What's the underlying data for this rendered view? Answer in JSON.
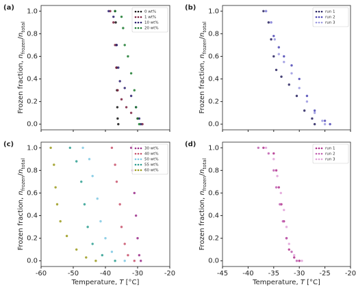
{
  "chart_data": [
    {
      "type": "scatter",
      "panel_label": "(a)",
      "ylabel": [
        "Frozen fraction, ",
        "n",
        "frozen",
        "/",
        "n",
        "total"
      ],
      "xlim": [
        -60,
        -20
      ],
      "ylim": [
        -0.05,
        1.05
      ],
      "xticks": [
        -60,
        -50,
        -40,
        -30,
        -20
      ],
      "yticks": [
        {
          "value": 0,
          "label": "0.0"
        },
        0.2,
        0.4,
        0.6,
        0.8,
        {
          "value": 1,
          "label": "1.0"
        }
      ],
      "legend": "upper right",
      "series": [
        {
          "name": "0 wt%",
          "color": "#111111",
          "x": [
            -37,
            -36.8,
            -36.6,
            -36.5,
            -36.4,
            -36.3,
            -36.2,
            -36
          ],
          "values": [
            1.0,
            0.9,
            0.7,
            0.5,
            0.3,
            0.15,
            0.05,
            0.0
          ]
        },
        {
          "name": "1 wt%",
          "color": "#7a1f3d",
          "x": [
            -38.5,
            -37.5,
            -37,
            -36.6,
            -36.2,
            -35,
            -33.5,
            -32,
            -30,
            -28.5
          ],
          "values": [
            1.0,
            0.9,
            0.7,
            0.5,
            0.3,
            0.22,
            0.15,
            0.1,
            0.05,
            0.0
          ]
        },
        {
          "name": "10 wt%",
          "color": "#2a1f6e",
          "x": [
            -39,
            -37.5,
            -36.5,
            -36,
            -35.5,
            -34,
            -32,
            -30.5,
            -29.5,
            -29
          ],
          "values": [
            1.0,
            0.95,
            0.7,
            0.5,
            0.38,
            0.32,
            0.25,
            0.15,
            0.05,
            0.0
          ]
        },
        {
          "name": "20 wt%",
          "color": "#1a7a2e",
          "x": [
            -37,
            -35,
            -34.5,
            -34,
            -33,
            -32,
            -31,
            -30.5,
            -30,
            -29.5
          ],
          "values": [
            1.0,
            0.95,
            0.85,
            0.7,
            0.6,
            0.45,
            0.3,
            0.15,
            0.05,
            0.0
          ]
        }
      ]
    },
    {
      "type": "scatter",
      "panel_label": "(b)",
      "ylabel": [
        "Frozen fraction, ",
        "n",
        "frozen",
        "/",
        "n",
        "total"
      ],
      "xlim": [
        -45,
        -20
      ],
      "ylim": [
        -0.05,
        1.05
      ],
      "xticks": [
        -45,
        -40,
        -35,
        -30,
        -25,
        -20
      ],
      "yticks": [
        {
          "value": 0,
          "label": "0.0"
        },
        0.2,
        0.4,
        0.6,
        0.8,
        {
          "value": 1,
          "label": "1.0"
        }
      ],
      "legend": "upper right",
      "series": [
        {
          "name": "run 1",
          "color": "#26205e",
          "x": [
            -37,
            -36,
            -35.5,
            -35,
            -34.5,
            -33.5,
            -32,
            -30.5,
            -29,
            -27.5,
            -27
          ],
          "values": [
            1.0,
            0.9,
            0.75,
            0.6,
            0.48,
            0.42,
            0.35,
            0.25,
            0.12,
            0.05,
            0.0
          ]
        },
        {
          "name": "run 2",
          "color": "#4b45b5",
          "x": [
            -36.5,
            -35.5,
            -35,
            -34,
            -33,
            -31.5,
            -30,
            -28.5,
            -27,
            -25,
            -24
          ],
          "values": [
            1.0,
            0.9,
            0.78,
            0.68,
            0.6,
            0.52,
            0.4,
            0.25,
            0.12,
            0.03,
            0.0
          ]
        },
        {
          "name": "run 3",
          "color": "#9a98e0",
          "x": [
            -36.5,
            -35.5,
            -34.8,
            -34,
            -33,
            -31.5,
            -30,
            -28.5,
            -27,
            -25.5,
            -25
          ],
          "values": [
            1.0,
            0.9,
            0.75,
            0.62,
            0.55,
            0.45,
            0.32,
            0.2,
            0.1,
            0.03,
            0.0
          ]
        }
      ]
    },
    {
      "type": "scatter",
      "panel_label": "(c)",
      "ylabel": [
        "Frozen fraction, ",
        "n",
        "frozen",
        "/",
        "n",
        "total"
      ],
      "xlabel": [
        "Temperature, ",
        "T",
        " [°C]"
      ],
      "xlim": [
        -60,
        -20
      ],
      "ylim": [
        -0.05,
        1.05
      ],
      "xticks": [
        -60,
        -50,
        -40,
        -30,
        -20
      ],
      "yticks": [
        {
          "value": 0,
          "label": "0.0"
        },
        0.2,
        0.4,
        0.6,
        0.8,
        {
          "value": 1,
          "label": "1.0"
        }
      ],
      "legend": "upper right",
      "series": [
        {
          "name": "30 wt%",
          "color": "#9b2d8a",
          "x": [
            -32,
            -31.5,
            -31,
            -30.5,
            -30,
            -29.5,
            -29
          ],
          "values": [
            1.0,
            0.8,
            0.6,
            0.4,
            0.2,
            0.05,
            0.0
          ]
        },
        {
          "name": "40 wt%",
          "color": "#c8506a",
          "x": [
            -38,
            -37,
            -36.5,
            -35.5,
            -35,
            -34,
            -33,
            -31
          ],
          "values": [
            1.0,
            0.85,
            0.7,
            0.5,
            0.3,
            0.15,
            0.05,
            0.0
          ]
        },
        {
          "name": "50 wt%",
          "color": "#7ec8e3",
          "x": [
            -47,
            -45,
            -44,
            -42.5,
            -41.5,
            -40,
            -38,
            -34
          ],
          "values": [
            1.0,
            0.9,
            0.75,
            0.55,
            0.35,
            0.2,
            0.08,
            0.0
          ]
        },
        {
          "name": "55 wt%",
          "color": "#2a9d8f",
          "x": [
            -51,
            -49,
            -47.5,
            -46.5,
            -45.5,
            -44,
            -41,
            -37
          ],
          "values": [
            1.0,
            0.88,
            0.7,
            0.5,
            0.3,
            0.15,
            0.05,
            0.0
          ]
        },
        {
          "name": "60 wt%",
          "color": "#9a9a1a",
          "x": [
            -57,
            -56,
            -55.5,
            -55,
            -54,
            -52,
            -49,
            -46,
            -43
          ],
          "values": [
            1.0,
            0.85,
            0.65,
            0.5,
            0.35,
            0.22,
            0.1,
            0.03,
            0.0
          ]
        }
      ]
    },
    {
      "type": "scatter",
      "panel_label": "(d)",
      "ylabel": [
        "Frozen fraction, ",
        "n",
        "frozen",
        "/",
        "n",
        "total"
      ],
      "xlabel": [
        "Temperature, ",
        "T",
        " [°C]"
      ],
      "xlim": [
        -45,
        -20
      ],
      "ylim": [
        -0.05,
        1.05
      ],
      "xticks": [
        -45,
        -40,
        -35,
        -30,
        -25,
        -20
      ],
      "yticks": [
        {
          "value": 0,
          "label": "0.0"
        },
        0.2,
        0.4,
        0.6,
        0.8,
        {
          "value": 1,
          "label": "1.0"
        }
      ],
      "legend": "upper right",
      "series": [
        {
          "name": "run 1",
          "color": "#b0308c",
          "x": [
            -37,
            -35,
            -34.5,
            -34,
            -33.5,
            -33,
            -32.5,
            -32,
            -31,
            -30
          ],
          "values": [
            1.0,
            0.95,
            0.8,
            0.65,
            0.5,
            0.35,
            0.2,
            0.1,
            0.03,
            0.0
          ]
        },
        {
          "name": "run 2",
          "color": "#c060b0",
          "x": [
            -38,
            -36,
            -35,
            -34.5,
            -33.8,
            -33.2,
            -32.5,
            -31.5,
            -30.5
          ],
          "values": [
            1.0,
            0.95,
            0.8,
            0.65,
            0.5,
            0.35,
            0.2,
            0.08,
            0.0
          ]
        },
        {
          "name": "run 3",
          "color": "#e0a0d8",
          "x": [
            -36.5,
            -35,
            -34.3,
            -33.6,
            -33,
            -32.5,
            -32,
            -31,
            -29.5
          ],
          "values": [
            1.0,
            0.9,
            0.75,
            0.6,
            0.45,
            0.3,
            0.15,
            0.05,
            0.0
          ]
        }
      ]
    }
  ]
}
